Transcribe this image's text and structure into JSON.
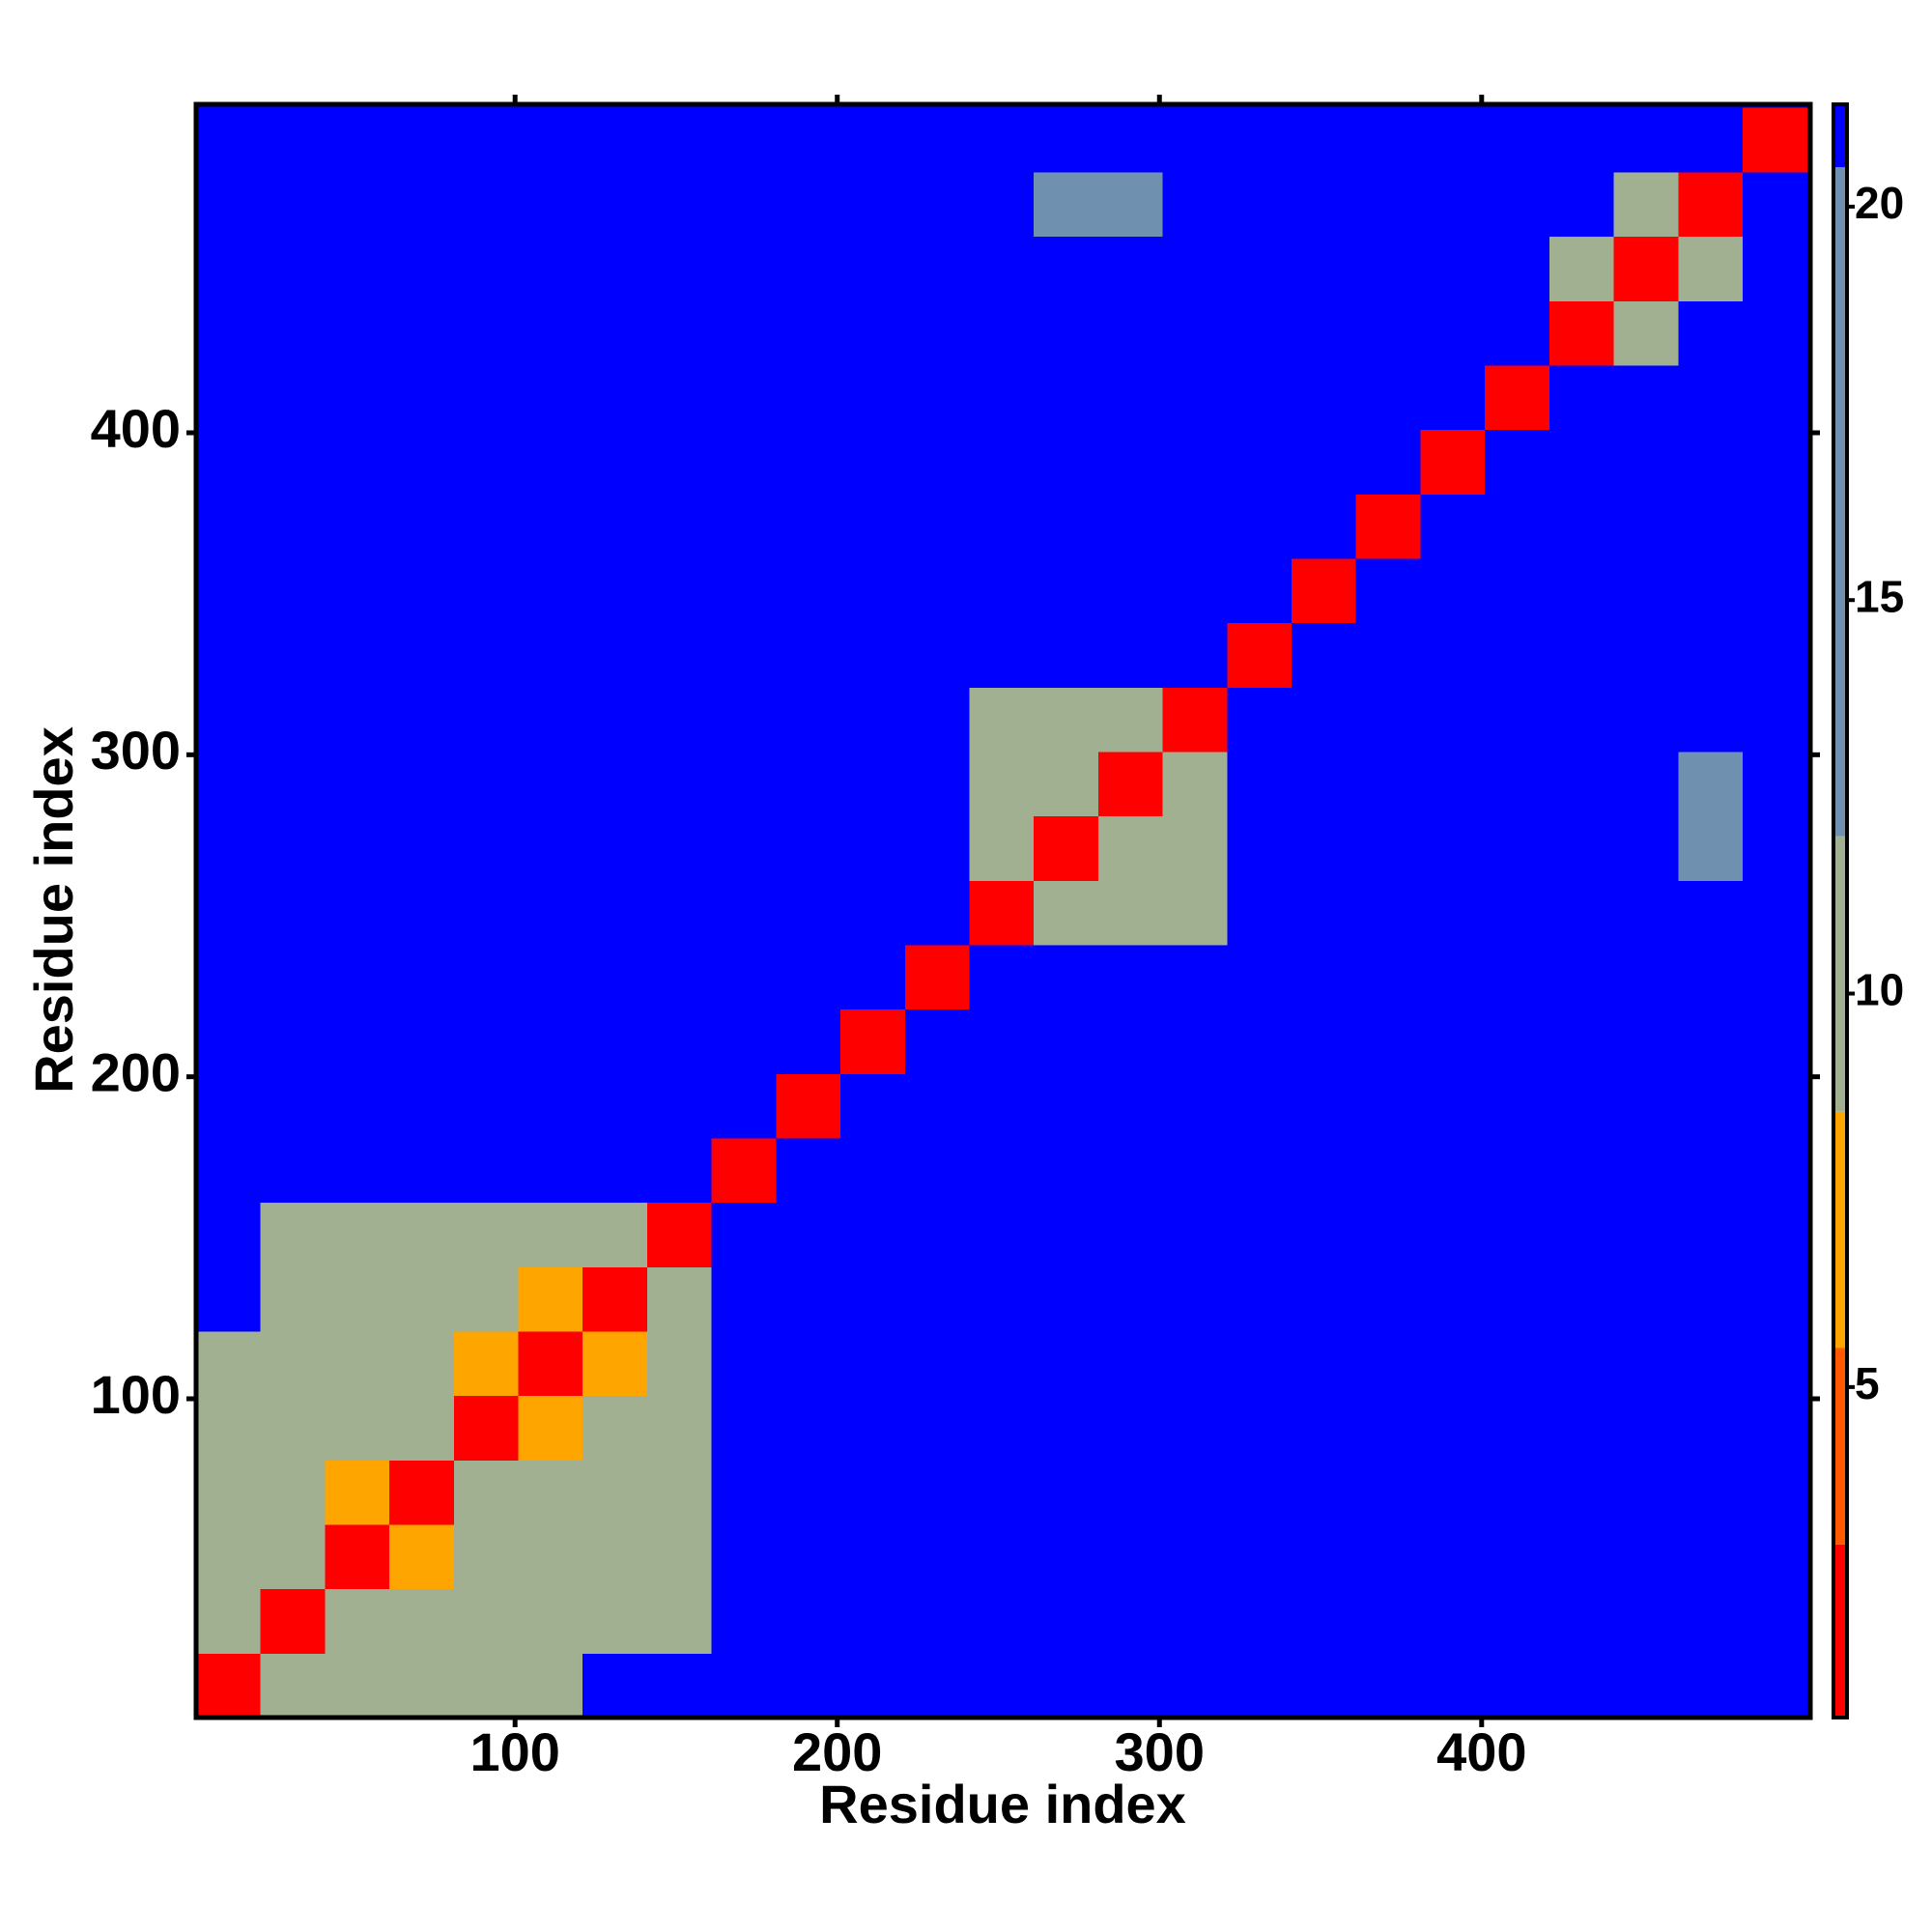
{
  "chart_data": {
    "type": "heatmap",
    "x_label": "Residue index",
    "y_label": "Residue index",
    "xlim": [
      1,
      502
    ],
    "ylim": [
      1,
      502
    ],
    "xticks": [
      100,
      200,
      300,
      400
    ],
    "yticks": [
      100,
      200,
      300,
      400
    ],
    "x_bins": [
      1,
      21,
      41,
      61,
      81,
      101,
      121,
      141,
      161,
      181,
      201,
      221,
      241,
      261,
      281,
      301,
      321,
      341,
      361,
      381,
      401,
      421,
      441,
      461,
      481,
      501
    ],
    "y_bins": [
      1,
      21,
      41,
      61,
      81,
      101,
      121,
      141,
      161,
      181,
      201,
      221,
      241,
      261,
      281,
      301,
      321,
      341,
      361,
      381,
      401,
      421,
      441,
      461,
      481,
      501
    ],
    "z": [
      [
        3,
        12,
        12,
        12,
        12,
        12,
        21,
        21,
        21,
        21,
        21,
        21,
        21,
        21,
        21,
        21,
        21,
        21,
        21,
        21,
        21,
        21,
        21,
        21,
        21
      ],
      [
        12,
        3,
        12,
        12,
        12,
        12,
        12,
        12,
        21,
        21,
        21,
        21,
        21,
        21,
        21,
        21,
        21,
        21,
        21,
        21,
        21,
        21,
        21,
        21,
        21
      ],
      [
        12,
        12,
        3,
        7,
        12,
        12,
        12,
        12,
        21,
        21,
        21,
        21,
        21,
        21,
        21,
        21,
        21,
        21,
        21,
        21,
        21,
        21,
        21,
        21,
        21
      ],
      [
        12,
        12,
        7,
        3,
        12,
        12,
        12,
        12,
        21,
        21,
        21,
        21,
        21,
        21,
        21,
        21,
        21,
        21,
        21,
        21,
        21,
        21,
        21,
        21,
        21
      ],
      [
        12,
        12,
        12,
        12,
        3,
        7,
        12,
        12,
        21,
        21,
        21,
        21,
        21,
        21,
        21,
        21,
        21,
        21,
        21,
        21,
        21,
        21,
        21,
        21,
        21
      ],
      [
        12,
        12,
        12,
        12,
        7,
        3,
        7,
        12,
        21,
        21,
        21,
        21,
        21,
        21,
        21,
        21,
        21,
        21,
        21,
        21,
        21,
        21,
        21,
        21,
        21
      ],
      [
        21,
        12,
        12,
        12,
        12,
        7,
        3,
        12,
        21,
        21,
        21,
        21,
        21,
        21,
        21,
        21,
        21,
        21,
        21,
        21,
        21,
        21,
        21,
        21,
        21
      ],
      [
        21,
        12,
        12,
        12,
        12,
        12,
        12,
        3,
        21,
        21,
        21,
        21,
        21,
        21,
        21,
        21,
        21,
        21,
        21,
        21,
        21,
        21,
        21,
        21,
        21
      ],
      [
        21,
        21,
        21,
        21,
        21,
        21,
        21,
        21,
        3,
        21,
        21,
        21,
        21,
        21,
        21,
        21,
        21,
        21,
        21,
        21,
        21,
        21,
        21,
        21,
        21
      ],
      [
        21,
        21,
        21,
        21,
        21,
        21,
        21,
        21,
        21,
        3,
        21,
        21,
        21,
        21,
        21,
        21,
        21,
        21,
        21,
        21,
        21,
        21,
        21,
        21,
        21
      ],
      [
        21,
        21,
        21,
        21,
        21,
        21,
        21,
        21,
        21,
        21,
        3,
        21,
        21,
        21,
        21,
        21,
        21,
        21,
        21,
        21,
        21,
        21,
        21,
        21,
        21
      ],
      [
        21,
        21,
        21,
        21,
        21,
        21,
        21,
        21,
        21,
        21,
        21,
        3,
        21,
        21,
        21,
        21,
        21,
        21,
        21,
        21,
        21,
        21,
        21,
        21,
        21
      ],
      [
        21,
        21,
        21,
        21,
        21,
        21,
        21,
        21,
        21,
        21,
        21,
        21,
        3,
        12,
        12,
        12,
        21,
        21,
        21,
        21,
        21,
        21,
        21,
        21,
        21
      ],
      [
        21,
        21,
        21,
        21,
        21,
        21,
        21,
        21,
        21,
        21,
        21,
        21,
        12,
        3,
        12,
        12,
        21,
        21,
        21,
        21,
        21,
        21,
        21,
        13,
        21
      ],
      [
        21,
        21,
        21,
        21,
        21,
        21,
        21,
        21,
        21,
        21,
        21,
        21,
        12,
        12,
        3,
        12,
        21,
        21,
        21,
        21,
        21,
        21,
        21,
        13,
        21
      ],
      [
        21,
        21,
        21,
        21,
        21,
        21,
        21,
        21,
        21,
        21,
        21,
        21,
        12,
        12,
        12,
        3,
        21,
        21,
        21,
        21,
        21,
        21,
        21,
        21,
        21
      ],
      [
        21,
        21,
        21,
        21,
        21,
        21,
        21,
        21,
        21,
        21,
        21,
        21,
        21,
        21,
        21,
        21,
        3,
        21,
        21,
        21,
        21,
        21,
        21,
        21,
        21
      ],
      [
        21,
        21,
        21,
        21,
        21,
        21,
        21,
        21,
        21,
        21,
        21,
        21,
        21,
        21,
        21,
        21,
        21,
        3,
        21,
        21,
        21,
        21,
        21,
        21,
        21
      ],
      [
        21,
        21,
        21,
        21,
        21,
        21,
        21,
        21,
        21,
        21,
        21,
        21,
        21,
        21,
        21,
        21,
        21,
        21,
        3,
        21,
        21,
        21,
        21,
        21,
        21
      ],
      [
        21,
        21,
        21,
        21,
        21,
        21,
        21,
        21,
        21,
        21,
        21,
        21,
        21,
        21,
        21,
        21,
        21,
        21,
        21,
        3,
        21,
        21,
        21,
        21,
        21
      ],
      [
        21,
        21,
        21,
        21,
        21,
        21,
        21,
        21,
        21,
        21,
        21,
        21,
        21,
        21,
        21,
        21,
        21,
        21,
        21,
        21,
        3,
        21,
        21,
        21,
        21
      ],
      [
        21,
        21,
        21,
        21,
        21,
        21,
        21,
        21,
        21,
        21,
        21,
        21,
        21,
        21,
        21,
        21,
        21,
        21,
        21,
        21,
        21,
        3,
        11,
        21,
        21
      ],
      [
        21,
        21,
        21,
        21,
        21,
        21,
        21,
        21,
        21,
        21,
        21,
        21,
        21,
        21,
        21,
        21,
        21,
        21,
        21,
        21,
        21,
        11,
        3,
        11,
        21
      ],
      [
        21,
        21,
        21,
        21,
        21,
        21,
        21,
        21,
        21,
        21,
        21,
        21,
        21,
        13,
        13,
        21,
        21,
        21,
        21,
        21,
        21,
        21,
        11,
        3,
        21
      ],
      [
        21,
        21,
        21,
        21,
        21,
        21,
        21,
        21,
        21,
        21,
        21,
        21,
        21,
        21,
        21,
        21,
        21,
        21,
        21,
        21,
        21,
        21,
        21,
        21,
        3
      ]
    ],
    "color_stops": [
      [
        3,
        "#ff0000"
      ],
      [
        5.5,
        "#ff5a00"
      ],
      [
        8.5,
        "#ffa500"
      ],
      [
        12,
        "#a0b090"
      ],
      [
        20.5,
        "#7090b0"
      ],
      [
        21.3,
        "#0000ff"
      ]
    ],
    "clim": [
      0.8,
      21.3
    ],
    "colorbar_ticks": [
      5,
      10,
      15,
      20
    ]
  }
}
